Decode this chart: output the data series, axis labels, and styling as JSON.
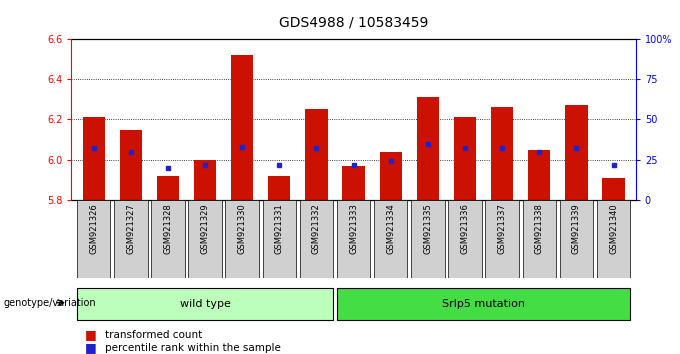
{
  "title": "GDS4988 / 10583459",
  "samples": [
    "GSM921326",
    "GSM921327",
    "GSM921328",
    "GSM921329",
    "GSM921330",
    "GSM921331",
    "GSM921332",
    "GSM921333",
    "GSM921334",
    "GSM921335",
    "GSM921336",
    "GSM921337",
    "GSM921338",
    "GSM921339",
    "GSM921340"
  ],
  "transformed_counts": [
    6.21,
    6.15,
    5.92,
    6.0,
    6.52,
    5.92,
    6.25,
    5.97,
    6.04,
    6.31,
    6.21,
    6.26,
    6.05,
    6.27,
    5.91
  ],
  "percentile_ranks": [
    32,
    30,
    20,
    22,
    33,
    22,
    32,
    22,
    24,
    35,
    32,
    32,
    30,
    32,
    22
  ],
  "ymin": 5.8,
  "ymax": 6.6,
  "yticks": [
    5.8,
    6.0,
    6.2,
    6.4,
    6.6
  ],
  "right_yticks": [
    0,
    25,
    50,
    75,
    100
  ],
  "right_yticklabels": [
    "0",
    "25",
    "50",
    "75",
    "100%"
  ],
  "grid_lines": [
    6.0,
    6.2,
    6.4
  ],
  "bar_color": "#cc1100",
  "blue_color": "#2222cc",
  "group1_label": "wild type",
  "group2_label": "Srlp5 mutation",
  "group1_indices": [
    0,
    1,
    2,
    3,
    4,
    5,
    6
  ],
  "group2_indices": [
    7,
    8,
    9,
    10,
    11,
    12,
    13,
    14
  ],
  "group1_bg": "#bbffbb",
  "group2_bg": "#44dd44",
  "genotype_label": "genotype/variation",
  "legend1": "transformed count",
  "legend2": "percentile rank within the sample",
  "title_fontsize": 10,
  "tick_fontsize": 7,
  "sample_fontsize": 6,
  "label_fontsize": 7.5,
  "bar_width": 0.6
}
